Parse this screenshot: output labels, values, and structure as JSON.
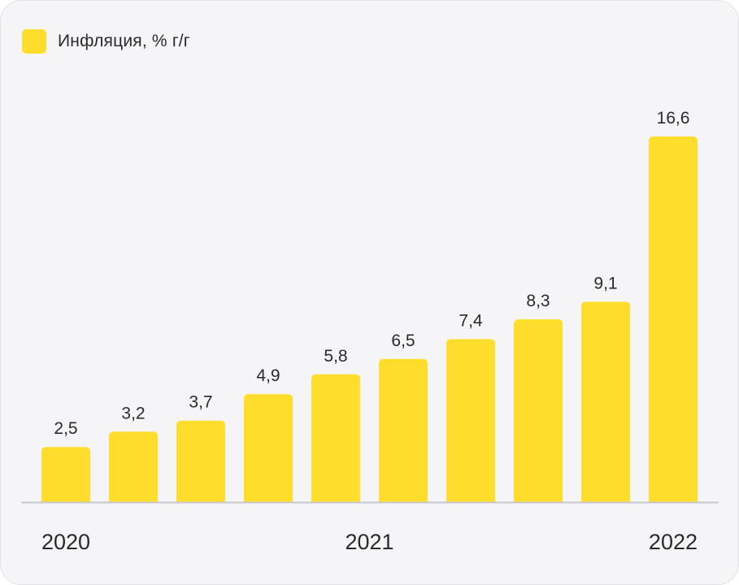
{
  "chart_data": {
    "type": "bar",
    "legend": [
      {
        "label": "Инфляция, % г/г",
        "color": "#FEDD2C"
      }
    ],
    "series": [
      {
        "name": "Инфляция, % г/г",
        "values": [
          2.5,
          3.2,
          3.7,
          4.9,
          5.8,
          6.5,
          7.4,
          8.3,
          9.1,
          16.6
        ]
      }
    ],
    "data_labels": [
      "2,5",
      "3,2",
      "3,7",
      "4,9",
      "5,8",
      "6,5",
      "7,4",
      "8,3",
      "9,1",
      "16,6"
    ],
    "x_labels": [
      {
        "text": "2020",
        "bar_index": 0,
        "align": "start"
      },
      {
        "text": "2021",
        "bar_index": 4.5,
        "align": "middle"
      },
      {
        "text": "2022",
        "bar_index": 9,
        "align": "end"
      }
    ],
    "ylim": [
      0,
      16.6
    ],
    "grid": false,
    "legend_position": "top-left",
    "bar_color": "#FEDD2C",
    "axis_color": "#c8c8cc"
  }
}
